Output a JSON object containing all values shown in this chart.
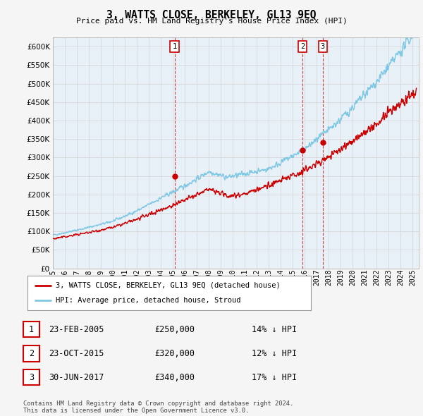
{
  "title": "3, WATTS CLOSE, BERKELEY, GL13 9EQ",
  "subtitle": "Price paid vs. HM Land Registry's House Price Index (HPI)",
  "ylabel_values": [
    0,
    50000,
    100000,
    150000,
    200000,
    250000,
    300000,
    350000,
    400000,
    450000,
    500000,
    550000,
    600000
  ],
  "ylim": [
    0,
    625000
  ],
  "xlim_start": 1995.0,
  "xlim_end": 2025.5,
  "sale_dates": [
    2005.14,
    2015.81,
    2017.5
  ],
  "sale_prices": [
    250000,
    320000,
    340000
  ],
  "sale_labels": [
    "1",
    "2",
    "3"
  ],
  "legend_red": "3, WATTS CLOSE, BERKELEY, GL13 9EQ (detached house)",
  "legend_blue": "HPI: Average price, detached house, Stroud",
  "table_data": [
    [
      "1",
      "23-FEB-2005",
      "£250,000",
      "14% ↓ HPI"
    ],
    [
      "2",
      "23-OCT-2015",
      "£320,000",
      "12% ↓ HPI"
    ],
    [
      "3",
      "30-JUN-2017",
      "£340,000",
      "17% ↓ HPI"
    ]
  ],
  "footnote": "Contains HM Land Registry data © Crown copyright and database right 2024.\nThis data is licensed under the Open Government Licence v3.0.",
  "hpi_color": "#7ec8e3",
  "price_color": "#cc0000",
  "vline_color": "#cc2222",
  "grid_color": "#d8d8d8",
  "background_plot": "#e8f0f8",
  "background_fig": "#f5f5f5"
}
